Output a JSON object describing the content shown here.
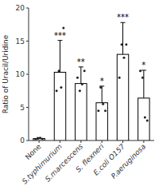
{
  "chart_data": {
    "type": "bar",
    "categories": [
      "None",
      "S.typhimurium",
      "S.marcescens",
      "S. flexneri",
      "E.coli O157",
      "P.aeruginosa"
    ],
    "values": [
      0.3,
      10.3,
      8.6,
      5.7,
      13.0,
      6.4
    ],
    "errors": [
      0.15,
      4.8,
      2.5,
      2.5,
      4.8,
      4.2
    ],
    "points": [
      [
        0.2,
        0.3,
        0.35,
        0.25
      ],
      [
        7.5,
        10.5,
        8.0,
        17.0
      ],
      [
        9.5,
        7.5,
        8.5,
        10.5
      ],
      [
        4.5,
        8.0,
        5.5,
        4.5
      ],
      [
        9.5,
        14.5,
        12.5,
        14.5
      ],
      [
        10.5,
        9.5,
        3.5,
        3.0
      ]
    ],
    "annotations": [
      null,
      "***",
      "**",
      "*",
      "***",
      "*"
    ],
    "color": "#ffffff",
    "y_label": "Ratio of Uracil/Uridine",
    "ylim": [
      0,
      20
    ],
    "yticks": [
      0,
      5,
      10,
      15,
      20
    ],
    "grid": false
  }
}
